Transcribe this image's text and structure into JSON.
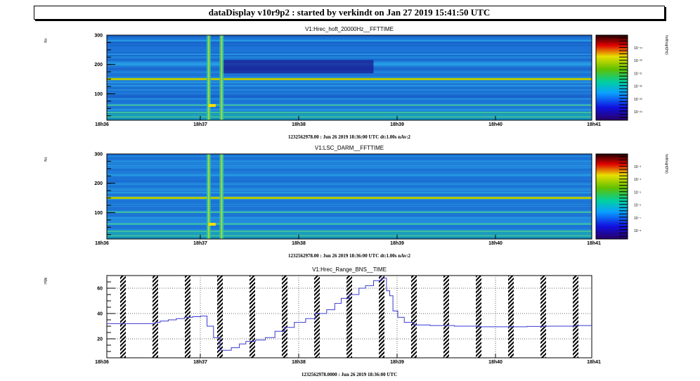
{
  "window": {
    "title": "dataDisplay v10r9p2 : started by verkindt on Jan 27 2019 15:41:50 UTC"
  },
  "colors": {
    "trace": "#3a3ad0",
    "frame": "#000000",
    "grid": "#666666"
  },
  "chart_data": [
    {
      "type": "heatmap",
      "title": "V1:Hrec_hoft_20000Hz__FFTTIME",
      "ylabel": "Hz",
      "colorbar_label": "hoft/sqrt(Hz)",
      "colorbar_ticks": [
        "10⁻¹⁹",
        "10⁻²⁰",
        "10⁻²¹",
        "10⁻²²",
        "10⁻²³",
        "10⁻²⁴"
      ],
      "x_ticks": [
        "18h36",
        "18h37",
        "18h38",
        "18h39",
        "18h40",
        "18h41"
      ],
      "y_ticks": [
        "100",
        "200",
        "300"
      ],
      "y_tick_values": [
        100,
        200,
        300
      ],
      "xlim": [
        0,
        300
      ],
      "ylim": [
        10,
        300
      ],
      "subtitle": "1232562978.00 : Jun 26 2019 18:36:00 UTC dt:1.00s nAv:2",
      "lines_hz": [
        150,
        35,
        60,
        20
      ],
      "transients_s": [
        63,
        71
      ],
      "quiet_band": {
        "x": [
          70,
          165
        ],
        "y": [
          170,
          215
        ]
      }
    },
    {
      "type": "heatmap",
      "title": "V1:LSC_DARM__FFTTIME",
      "ylabel": "Hz",
      "colorbar_label": "hoft/sqrt(Hz)",
      "colorbar_ticks": [
        "10⁻³",
        "10⁻⁴",
        "10⁻⁵",
        "10⁻⁶",
        "10⁻⁷",
        "10⁻⁸"
      ],
      "x_ticks": [
        "18h36",
        "18h37",
        "18h38",
        "18h39",
        "18h40",
        "18h41"
      ],
      "y_ticks": [
        "100",
        "200",
        "300"
      ],
      "y_tick_values": [
        100,
        200,
        300
      ],
      "xlim": [
        0,
        300
      ],
      "ylim": [
        10,
        300
      ],
      "subtitle": "1232562978.00 : Jun 26 2019 18:36:00 UTC dt:1.00s nAv:2",
      "lines_hz": [
        150,
        60,
        35,
        100,
        20
      ],
      "transients_s": [
        63,
        71
      ]
    },
    {
      "type": "line",
      "title": "V1:Hrec_Range_BNS__TIME",
      "ylabel": "Mpc",
      "x_ticks": [
        "18h36",
        "18h37",
        "18h38",
        "18h39",
        "18h40",
        "18h41"
      ],
      "y_ticks": [
        "20",
        "40",
        "60"
      ],
      "y_tick_values": [
        20,
        40,
        60
      ],
      "xlim": [
        0,
        300
      ],
      "ylim": [
        5,
        70
      ],
      "subtitle": "1232562978.0000 : Jun 26 2019 18:36:00 UTC",
      "steps": [
        [
          0,
          32
        ],
        [
          30,
          33
        ],
        [
          33,
          34
        ],
        [
          38,
          35
        ],
        [
          43,
          36
        ],
        [
          48,
          37
        ],
        [
          53,
          37.5
        ],
        [
          58,
          38
        ],
        [
          62,
          30
        ],
        [
          66,
          21
        ],
        [
          70,
          11
        ],
        [
          77,
          13
        ],
        [
          82,
          16
        ],
        [
          86,
          18
        ],
        [
          92,
          19
        ],
        [
          98,
          21
        ],
        [
          104,
          26
        ],
        [
          110,
          29
        ],
        [
          116,
          33
        ],
        [
          123,
          36
        ],
        [
          129,
          40
        ],
        [
          136,
          43
        ],
        [
          141,
          48
        ],
        [
          145,
          52
        ],
        [
          150,
          55
        ],
        [
          156,
          60
        ],
        [
          160,
          62
        ],
        [
          165,
          66
        ],
        [
          170,
          68
        ],
        [
          173,
          58
        ],
        [
          175,
          54
        ],
        [
          177,
          42
        ],
        [
          180,
          37
        ],
        [
          184,
          33
        ],
        [
          190,
          31
        ],
        [
          200,
          30.5
        ],
        [
          215,
          30
        ],
        [
          230,
          29.5
        ],
        [
          260,
          29.8
        ],
        [
          272,
          30
        ],
        [
          290,
          30.5
        ],
        [
          300,
          30.5
        ]
      ],
      "gap_starts_s": [
        10,
        30,
        50,
        70,
        90,
        110,
        130,
        150,
        170,
        190,
        210,
        230,
        250,
        270,
        290
      ]
    }
  ]
}
